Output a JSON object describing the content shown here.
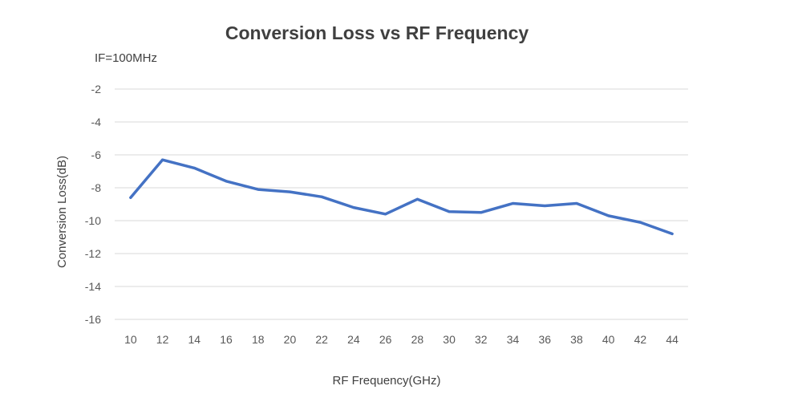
{
  "chart_data": {
    "type": "line",
    "title": "Conversion Loss vs RF Frequency",
    "subtitle": "IF=100MHz",
    "xlabel": "RF Frequency(GHz)",
    "ylabel": "Conversion Loss(dB)",
    "x": [
      10,
      12,
      14,
      16,
      18,
      20,
      22,
      24,
      26,
      28,
      30,
      32,
      34,
      36,
      38,
      40,
      42,
      44
    ],
    "series": [
      {
        "values": [
          -8.6,
          -6.3,
          -6.8,
          -7.6,
          -8.1,
          -8.25,
          -8.55,
          -9.2,
          -9.6,
          -8.7,
          -9.45,
          -9.5,
          -8.95,
          -9.1,
          -8.95,
          -9.7,
          -10.1,
          -10.8
        ],
        "color": "#4472C4"
      }
    ],
    "yticks": [
      -2,
      -4,
      -6,
      -8,
      -10,
      -12,
      -14,
      -16
    ],
    "ylim": [
      -16,
      -2
    ],
    "grid": true,
    "legend": "none"
  }
}
